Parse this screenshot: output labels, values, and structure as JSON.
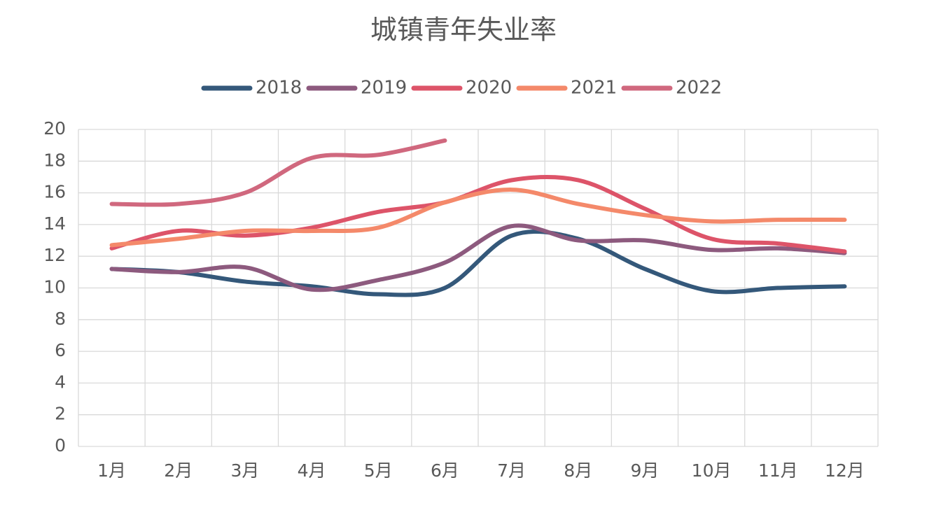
{
  "chart_data": {
    "type": "line",
    "title": "城镇青年失业率",
    "categories": [
      "1月",
      "2月",
      "3月",
      "4月",
      "5月",
      "6月",
      "7月",
      "8月",
      "9月",
      "10月",
      "11月",
      "12月"
    ],
    "series": [
      {
        "name": "2018",
        "color": "#34587a",
        "values": [
          11.2,
          11.0,
          10.4,
          10.1,
          9.6,
          10.0,
          13.3,
          13.1,
          11.2,
          9.8,
          10.0,
          10.1
        ]
      },
      {
        "name": "2019",
        "color": "#8d5a7e",
        "values": [
          11.2,
          11.0,
          11.3,
          9.9,
          10.5,
          11.6,
          13.9,
          13.0,
          13.0,
          12.4,
          12.5,
          12.2
        ]
      },
      {
        "name": "2020",
        "color": "#dd5469",
        "values": [
          12.5,
          13.6,
          13.3,
          13.8,
          14.8,
          15.4,
          16.8,
          16.8,
          15.0,
          13.1,
          12.8,
          12.3
        ]
      },
      {
        "name": "2021",
        "color": "#f4896a",
        "values": [
          12.7,
          13.1,
          13.6,
          13.6,
          13.8,
          15.4,
          16.2,
          15.3,
          14.6,
          14.2,
          14.3,
          14.3
        ]
      },
      {
        "name": "2022",
        "color": "#d0687e",
        "values": [
          15.3,
          15.3,
          16.0,
          18.2,
          18.4,
          19.3,
          null,
          null,
          null,
          null,
          null,
          null
        ]
      }
    ],
    "ylim": [
      0,
      20
    ],
    "yticks": [
      0,
      2,
      4,
      6,
      8,
      10,
      12,
      14,
      16,
      18,
      20
    ],
    "grid": true,
    "legend": "top",
    "smooth": true
  }
}
